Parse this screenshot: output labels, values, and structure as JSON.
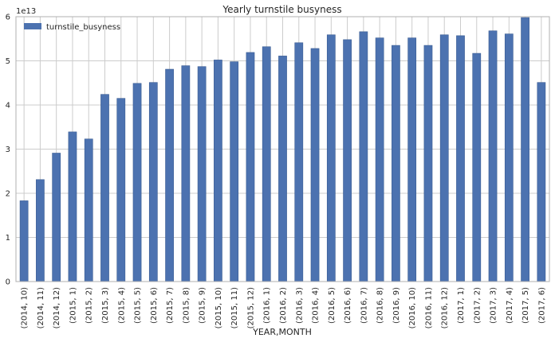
{
  "chart_data": {
    "type": "bar",
    "title": "Yearly turnstile busyness",
    "xlabel": "YEAR,MONTH",
    "ylabel": "",
    "y_offset_label": "1e13",
    "ylim": [
      0,
      6
    ],
    "yticks": [
      0,
      1,
      2,
      3,
      4,
      5,
      6
    ],
    "grid": true,
    "legend_position": "top-left",
    "bar_color": "#4c72b0",
    "categories": [
      "(2014, 10)",
      "(2014, 11)",
      "(2014, 12)",
      "(2015, 1)",
      "(2015, 2)",
      "(2015, 3)",
      "(2015, 4)",
      "(2015, 5)",
      "(2015, 6)",
      "(2015, 7)",
      "(2015, 8)",
      "(2015, 9)",
      "(2015, 10)",
      "(2015, 11)",
      "(2015, 12)",
      "(2016, 1)",
      "(2016, 2)",
      "(2016, 3)",
      "(2016, 4)",
      "(2016, 5)",
      "(2016, 6)",
      "(2016, 7)",
      "(2016, 8)",
      "(2016, 9)",
      "(2016, 10)",
      "(2016, 11)",
      "(2016, 12)",
      "(2017, 1)",
      "(2017, 2)",
      "(2017, 3)",
      "(2017, 4)",
      "(2017, 5)",
      "(2017, 6)"
    ],
    "series": [
      {
        "name": "turnstile_busyness",
        "values": [
          1.83,
          2.31,
          2.91,
          3.39,
          3.23,
          4.24,
          4.15,
          4.49,
          4.51,
          4.81,
          4.89,
          4.87,
          5.02,
          4.98,
          5.19,
          5.32,
          5.11,
          5.41,
          5.28,
          5.59,
          5.48,
          5.66,
          5.52,
          5.35,
          5.52,
          5.35,
          5.59,
          5.57,
          5.17,
          5.68,
          5.61,
          5.98,
          4.51
        ]
      }
    ]
  }
}
